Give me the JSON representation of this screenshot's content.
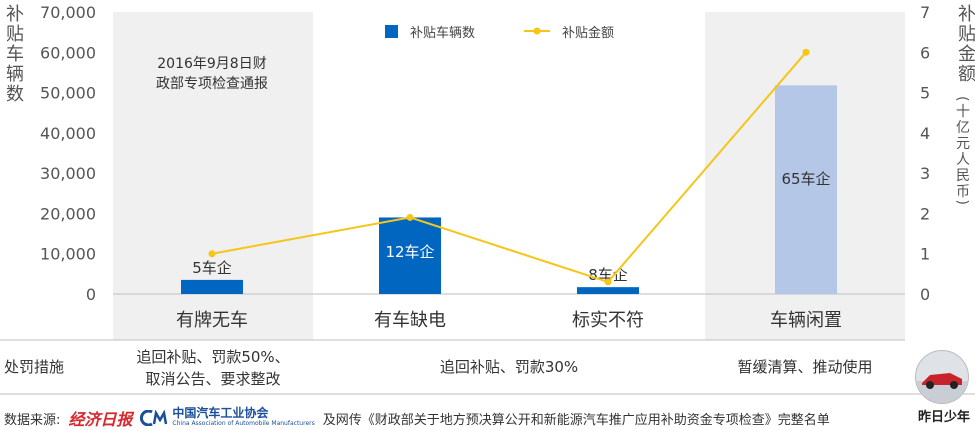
{
  "chart_data": {
    "type": "bar+line",
    "categories": [
      "有牌无车",
      "有车缺电",
      "标实不符",
      "车辆闲置"
    ],
    "series": [
      {
        "name": "补贴车辆数",
        "type": "bar",
        "axis": "left",
        "values": [
          3500,
          19000,
          1700,
          51800
        ],
        "color": "#0066c0",
        "highlight_color": "#b4c7e7"
      },
      {
        "name": "补贴金额",
        "type": "line",
        "axis": "right",
        "values": [
          1.0,
          1.9,
          0.3,
          6.0
        ],
        "color": "#f5c518"
      }
    ],
    "bar_labels": [
      "5车企",
      "12车企",
      "8车企",
      "65车企"
    ],
    "left_axis": {
      "label": "补贴车辆数",
      "ylim": [
        0,
        70000
      ],
      "ticks": [
        "0",
        "10,000",
        "20,000",
        "30,000",
        "40,000",
        "50,000",
        "60,000",
        "70,000"
      ]
    },
    "right_axis": {
      "label": "补贴金额",
      "unit": "(十亿元人民币)",
      "ylim": [
        0,
        7
      ],
      "ticks": [
        "0",
        "1",
        "2",
        "3",
        "4",
        "5",
        "6",
        "7"
      ]
    },
    "annotation": "2016年9月8日财政部专项检查通报",
    "legend_position": "top-center",
    "grid": false
  },
  "annotation_lines": [
    "2016年9月8日财",
    "政部专项检查通报"
  ],
  "penalty": {
    "row_label": "处罚措施",
    "col1": [
      "追回补贴、罚款50%、",
      "取消公告、要求整改"
    ],
    "col2": "追回补贴、罚款30%",
    "col3": "暂缓清算、推动使用"
  },
  "footer": {
    "prefix": "数据来源:",
    "brand1": "经济日报",
    "brand2_cn": "中国汽车工业协会",
    "brand2_en": "China Association of Automobile Manufacturers",
    "suffix": "及网传《财政部关于地方预决算公开和新能源汽车推广应用补助资金专项检查》完整名单",
    "watermark": "昨日少年"
  }
}
